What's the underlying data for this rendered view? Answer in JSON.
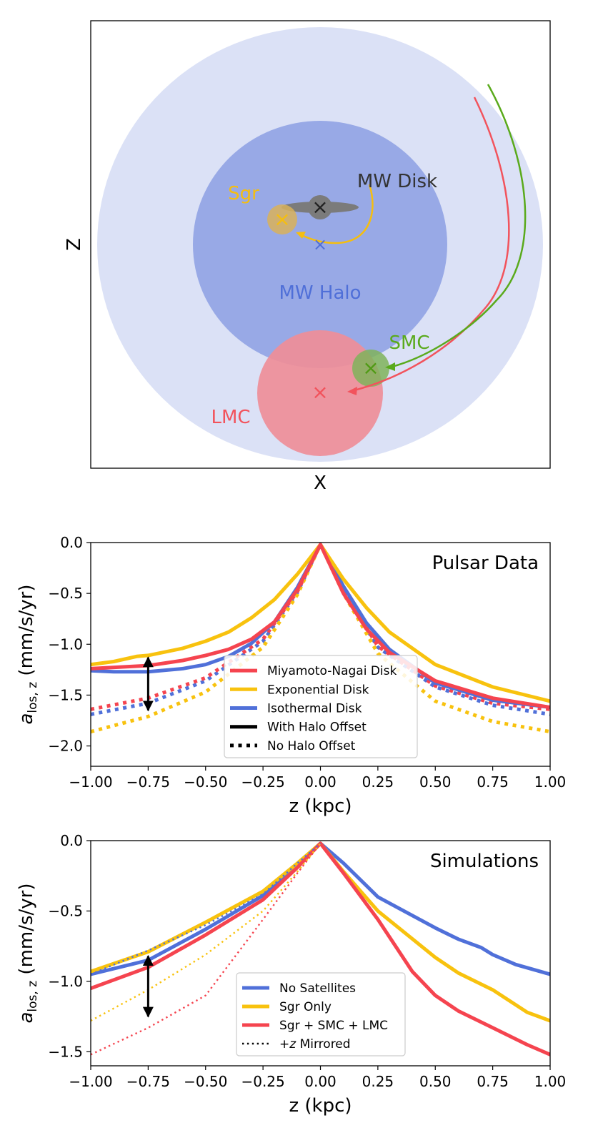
{
  "schematic": {
    "xlabel": "X",
    "ylabel": "Z",
    "labels": {
      "mw_disk": "MW Disk",
      "sgr": "Sgr",
      "mw_halo": "MW Halo",
      "smc": "SMC",
      "lmc": "LMC"
    },
    "marker_symbol": "×",
    "colors": {
      "halo_outer": "#dbe1f6",
      "halo_inner": "#98a9e6",
      "halo_text": "#4f6fd8",
      "disk": "#7b7b7b",
      "disk_text": "#333333",
      "sgr": "#f5be0f",
      "smc": "#5aaa1c",
      "lmc": "#f2535c",
      "lmc_fill": "#ef8e98"
    }
  },
  "chart_data": [
    {
      "type": "line",
      "title": "Pulsar Data",
      "xlabel": "z (kpc)",
      "ylabel_main": "a",
      "ylabel_sub": "los, z",
      "ylabel_rest": " (mm/s/yr)",
      "xlim": [
        -1.0,
        1.0
      ],
      "ylim": [
        -2.2,
        0.0
      ],
      "xticks": [
        -1.0,
        -0.75,
        -0.5,
        -0.25,
        0.0,
        0.25,
        0.5,
        0.75,
        1.0
      ],
      "xtick_labels": [
        "−1.00",
        "−0.75",
        "−0.50",
        "−0.25",
        "0.00",
        "0.25",
        "0.50",
        "0.75",
        "1.00"
      ],
      "yticks": [
        0.0,
        -0.5,
        -1.0,
        -1.5,
        -2.0
      ],
      "ytick_labels": [
        "0.0",
        "−0.5",
        "−1.0",
        "−1.5",
        "−2.0"
      ],
      "legend_position": "lower-center",
      "legend": [
        {
          "label": "Miyamoto-Nagai Disk",
          "color": "#f5444f",
          "style": "solid"
        },
        {
          "label": "Exponential Disk",
          "color": "#f8c20e",
          "style": "solid"
        },
        {
          "label": "Isothermal Disk",
          "color": "#5070d9",
          "style": "solid"
        },
        {
          "label": "With Halo Offset",
          "color": "#000000",
          "style": "solid"
        },
        {
          "label": "No Halo Offset",
          "color": "#000000",
          "style": "dotted"
        }
      ],
      "arrow": {
        "x": -0.75,
        "y1": -1.13,
        "y2": -1.65
      },
      "series": [
        {
          "color": "#5070d9",
          "style": "dotted",
          "x": [
            -1,
            -0.75,
            -0.5,
            -0.25,
            -0.1,
            0,
            0.1,
            0.25,
            0.5,
            0.75,
            1
          ],
          "y": [
            -1.69,
            -1.58,
            -1.36,
            -0.97,
            -0.49,
            -0.02,
            -0.48,
            -1.03,
            -1.42,
            -1.6,
            -1.69
          ]
        },
        {
          "color": "#f8c20e",
          "style": "dotted",
          "x": [
            -1,
            -0.75,
            -0.5,
            -0.25,
            -0.1,
            0,
            0.1,
            0.25,
            0.5,
            0.75,
            1
          ],
          "y": [
            -1.86,
            -1.71,
            -1.47,
            -1.03,
            -0.51,
            -0.02,
            -0.5,
            -1.09,
            -1.56,
            -1.76,
            -1.86
          ]
        },
        {
          "color": "#f5444f",
          "style": "dotted",
          "x": [
            -1,
            -0.75,
            -0.5,
            -0.25,
            -0.1,
            0,
            0.1,
            0.25,
            0.5,
            0.75,
            1
          ],
          "y": [
            -1.64,
            -1.53,
            -1.33,
            -0.95,
            -0.48,
            -0.02,
            -0.47,
            -1.02,
            -1.41,
            -1.58,
            -1.64
          ]
        },
        {
          "color": "#5070d9",
          "style": "solid",
          "x": [
            -1,
            -0.9,
            -0.75,
            -0.6,
            -0.5,
            -0.4,
            -0.3,
            -0.2,
            -0.1,
            0,
            0.1,
            0.2,
            0.3,
            0.5,
            0.75,
            1
          ],
          "y": [
            -1.26,
            -1.27,
            -1.27,
            -1.24,
            -1.2,
            -1.12,
            -0.99,
            -0.78,
            -0.44,
            -0.02,
            -0.43,
            -0.79,
            -1.05,
            -1.38,
            -1.55,
            -1.62
          ]
        },
        {
          "color": "#f8c20e",
          "style": "solid",
          "x": [
            -1,
            -0.9,
            -0.8,
            -0.75,
            -0.6,
            -0.5,
            -0.4,
            -0.3,
            -0.2,
            -0.1,
            0,
            0.1,
            0.2,
            0.3,
            0.5,
            0.75,
            1
          ],
          "y": [
            -1.2,
            -1.17,
            -1.12,
            -1.11,
            -1.04,
            -0.97,
            -0.88,
            -0.74,
            -0.56,
            -0.31,
            -0.02,
            -0.36,
            -0.64,
            -0.88,
            -1.2,
            -1.42,
            -1.56
          ]
        },
        {
          "color": "#f5444f",
          "style": "solid",
          "x": [
            -1,
            -0.75,
            -0.6,
            -0.5,
            -0.4,
            -0.3,
            -0.2,
            -0.1,
            0,
            0.1,
            0.2,
            0.3,
            0.5,
            0.75,
            1
          ],
          "y": [
            -1.24,
            -1.21,
            -1.16,
            -1.11,
            -1.05,
            -0.95,
            -0.78,
            -0.46,
            -0.02,
            -0.5,
            -0.85,
            -1.08,
            -1.36,
            -1.53,
            -1.62
          ]
        }
      ]
    },
    {
      "type": "line",
      "title": "Simulations",
      "xlabel": "z (kpc)",
      "ylabel_main": "a",
      "ylabel_sub": "los, z",
      "ylabel_rest": " (mm/s/yr)",
      "xlim": [
        -1.0,
        1.0
      ],
      "ylim": [
        -1.6,
        0.0
      ],
      "xticks": [
        -1.0,
        -0.75,
        -0.5,
        -0.25,
        0.0,
        0.25,
        0.5,
        0.75,
        1.0
      ],
      "xtick_labels": [
        "−1.00",
        "−0.75",
        "−0.50",
        "−0.25",
        "0.00",
        "0.25",
        "0.50",
        "0.75",
        "1.00"
      ],
      "yticks": [
        0.0,
        -0.5,
        -1.0,
        -1.5
      ],
      "ytick_labels": [
        "0.0",
        "−0.5",
        "−1.0",
        "−1.5"
      ],
      "legend_position": "lower-center",
      "legend": [
        {
          "label": "No Satellites",
          "color": "#5070d9",
          "style": "solid"
        },
        {
          "label": "Sgr Only",
          "color": "#f8c20e",
          "style": "solid"
        },
        {
          "label": "Sgr + SMC + LMC",
          "color": "#f5444f",
          "style": "solid"
        },
        {
          "label": "+z Mirrored",
          "color": "#000000",
          "style": "thin-dotted"
        }
      ],
      "arrow": {
        "x": -0.75,
        "y1": -0.82,
        "y2": -1.25
      },
      "series": [
        {
          "color": "#5070d9",
          "style": "solid",
          "x": [
            -1,
            -0.75,
            -0.5,
            -0.25,
            -0.1,
            0,
            0.1,
            0.25,
            0.5,
            0.6,
            0.7,
            0.75,
            0.85,
            1
          ],
          "y": [
            -0.95,
            -0.85,
            -0.63,
            -0.39,
            -0.17,
            -0.02,
            -0.16,
            -0.4,
            -0.62,
            -0.7,
            -0.76,
            -0.81,
            -0.88,
            -0.95
          ]
        },
        {
          "color": "#f8c20e",
          "style": "solid",
          "x": [
            -1,
            -0.75,
            -0.5,
            -0.25,
            -0.1,
            0,
            0.1,
            0.25,
            0.5,
            0.6,
            0.75,
            0.9,
            1
          ],
          "y": [
            -0.93,
            -0.79,
            -0.58,
            -0.36,
            -0.16,
            -0.02,
            -0.22,
            -0.5,
            -0.83,
            -0.94,
            -1.06,
            -1.22,
            -1.28
          ]
        },
        {
          "color": "#f5444f",
          "style": "solid",
          "x": [
            -1,
            -0.75,
            -0.5,
            -0.25,
            -0.1,
            0,
            0.1,
            0.25,
            0.4,
            0.5,
            0.6,
            0.75,
            0.9,
            1
          ],
          "y": [
            -1.05,
            -0.9,
            -0.67,
            -0.42,
            -0.19,
            -0.02,
            -0.23,
            -0.56,
            -0.93,
            -1.1,
            -1.21,
            -1.33,
            -1.45,
            -1.52
          ]
        },
        {
          "color": "#5070d9",
          "style": "thin-dotted",
          "x": [
            -1,
            -0.75,
            -0.5,
            -0.25,
            -0.1,
            0
          ],
          "y": [
            -0.95,
            -0.78,
            -0.6,
            -0.38,
            -0.16,
            -0.02
          ]
        },
        {
          "color": "#f8c20e",
          "style": "thin-dotted",
          "x": [
            -1,
            -0.75,
            -0.5,
            -0.25,
            -0.1,
            0
          ],
          "y": [
            -1.28,
            -1.06,
            -0.81,
            -0.5,
            -0.22,
            -0.02
          ]
        },
        {
          "color": "#f5444f",
          "style": "thin-dotted",
          "x": [
            -1,
            -0.75,
            -0.5,
            -0.25,
            -0.1,
            0
          ],
          "y": [
            -1.52,
            -1.33,
            -1.1,
            -0.56,
            -0.23,
            -0.02
          ]
        }
      ]
    }
  ]
}
